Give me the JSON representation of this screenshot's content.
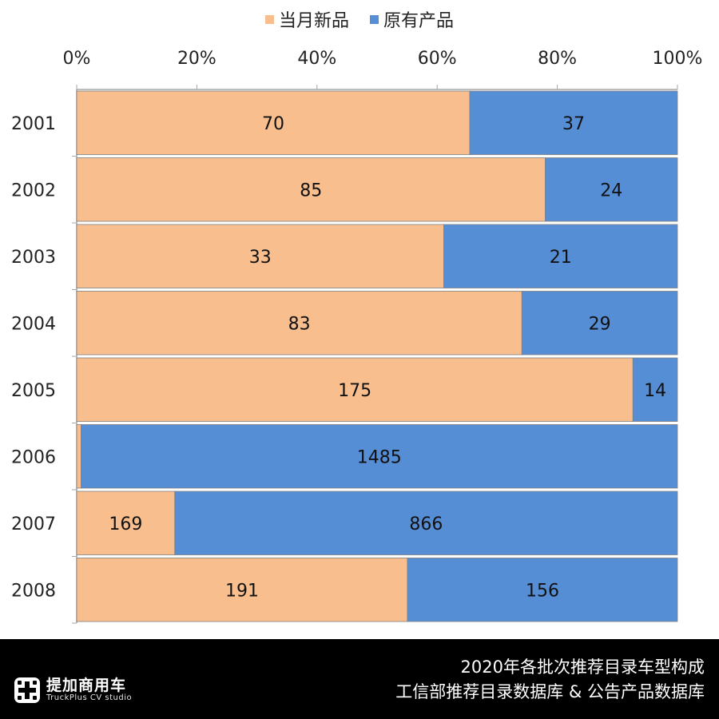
{
  "legend": [
    {
      "name": "当月新品",
      "color": "#F8BE8E"
    },
    {
      "name": "原有产品",
      "color": "#558ED5"
    }
  ],
  "footer": {
    "line1": "2020年各批次推荐目录车型构成",
    "line2": "工信部推荐目录数据库 & 公告产品数据库",
    "logo_cn": "提加商用车",
    "logo_en": "TruckPlus CV studio"
  },
  "chart_data": {
    "type": "bar",
    "orientation": "horizontal",
    "stacked": "percent",
    "categories": [
      "2001",
      "2002",
      "2003",
      "2004",
      "2005",
      "2006",
      "2007",
      "2008"
    ],
    "series": [
      {
        "name": "当月新品",
        "values": [
          70,
          85,
          33,
          83,
          175,
          11,
          169,
          191
        ],
        "color": "#F8BE8E"
      },
      {
        "name": "原有产品",
        "values": [
          37,
          24,
          21,
          29,
          14,
          1485,
          866,
          156
        ],
        "color": "#558ED5"
      }
    ],
    "x_ticks": [
      "0%",
      "20%",
      "40%",
      "60%",
      "80%",
      "100%"
    ],
    "xlim": [
      0,
      100
    ],
    "axis_position": "top",
    "legend_position": "top",
    "grid": false
  }
}
